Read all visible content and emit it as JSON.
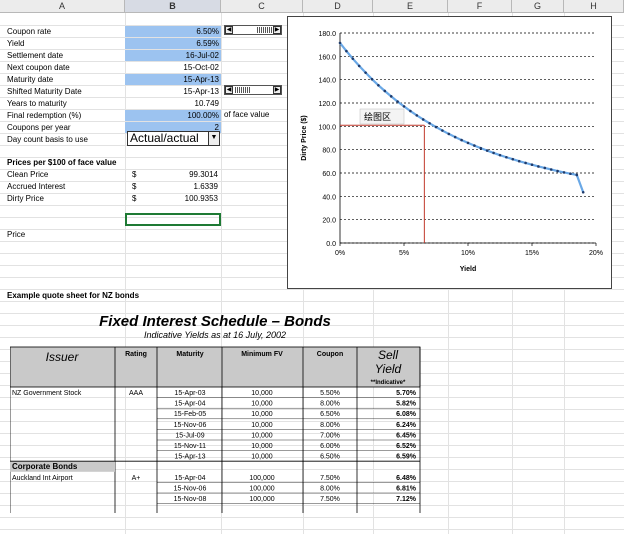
{
  "columns": [
    "A",
    "B",
    "C",
    "D",
    "E",
    "F",
    "G",
    "H"
  ],
  "inputs": {
    "rows": [
      {
        "label": "Coupon rate",
        "value": "6.50%",
        "highlight": true
      },
      {
        "label": "Yield",
        "value": "6.59%",
        "highlight": true
      },
      {
        "label": "Settlement date",
        "value": "16-Jul-02",
        "highlight": true
      },
      {
        "label": "Next coupon date",
        "value": "15-Oct-02",
        "highlight": false
      },
      {
        "label": "Maturity date",
        "value": "15-Apr-13",
        "highlight": true
      },
      {
        "label": "Shifted Maturity Date",
        "value": "15-Apr-13",
        "highlight": false
      },
      {
        "label": "Years to maturity",
        "value": "10.749",
        "highlight": false
      },
      {
        "label": "Final redemption (%)",
        "value": "100.00%",
        "highlight": true
      },
      {
        "label": "Coupons per year",
        "value": "2",
        "highlight": true
      },
      {
        "label": "Day count basis to use",
        "value": "",
        "highlight": false
      }
    ],
    "face_value_note": "of face value",
    "day_count_selected": "Actual/actual",
    "colors": {
      "highlight": "#9cc3f0"
    }
  },
  "prices": {
    "heading": "Prices per $100 of face value",
    "rows": [
      {
        "label": "Clean Price",
        "currency": "$",
        "value": "99.3014"
      },
      {
        "label": "Accrued Interest",
        "currency": "$",
        "value": "1.6339"
      },
      {
        "label": "Dirty Price",
        "currency": "$",
        "value": "100.9353"
      }
    ],
    "price_label": "Price"
  },
  "example_caption": "Example quote sheet for NZ bonds",
  "chart_data": {
    "type": "line",
    "title": "",
    "xlabel": "Yield",
    "ylabel": "Dirty Price ($)",
    "xlim": [
      0,
      20
    ],
    "ylim": [
      0,
      180
    ],
    "x_ticks": [
      "0%",
      "5%",
      "10%",
      "15%",
      "20%"
    ],
    "y_ticks": [
      "0.0",
      "20.0",
      "40.0",
      "60.0",
      "80.0",
      "100.0",
      "120.0",
      "140.0",
      "160.0",
      "180.0"
    ],
    "grid": true,
    "series": [
      {
        "x": [
          0,
          0.5,
          1,
          1.5,
          2,
          2.5,
          3,
          3.5,
          4,
          4.5,
          5,
          5.5,
          6,
          6.5,
          7,
          7.5,
          8,
          8.5,
          9,
          9.5,
          10,
          10.5,
          11,
          11.5,
          12,
          12.5,
          13,
          13.5,
          14,
          14.5,
          15,
          15.5,
          16,
          16.5,
          17,
          17.5,
          18,
          18.5,
          19
        ],
        "y": [
          171.5,
          164.5,
          158,
          151.8,
          146,
          140.4,
          135.2,
          130.3,
          125.7,
          121.2,
          117.1,
          113.1,
          109.4,
          105.9,
          102.6,
          99.4,
          96.4,
          93.5,
          90.8,
          88.2,
          85.8,
          83.5,
          81.3,
          79.2,
          77.2,
          75.3,
          73.5,
          71.8,
          70.1,
          68.6,
          67.1,
          65.6,
          64.3,
          63,
          61.7,
          60.5,
          59.4,
          58.3,
          43.5
        ]
      }
    ],
    "marker": {
      "x": 6.59,
      "y": 100.9353
    },
    "tooltip": "绘图区",
    "colors": {
      "line": "#6aa8e6",
      "marker_line": "#c0392b",
      "points": "#1f3b6b"
    }
  },
  "fis": {
    "title": "Fixed Interest Schedule – Bonds",
    "subtitle": "Indicative Yields as at 16 July, 2002",
    "headers": {
      "issuer": "Issuer",
      "rating": "Rating",
      "maturity": "Maturity",
      "minfv": "Minimum FV",
      "coupon": "Coupon",
      "sell": "Sell",
      "yield": "Yield",
      "indicative": "**Indicative*"
    },
    "groups": [
      {
        "name": "NZ Government Stock",
        "rating": "AAA",
        "rows": [
          {
            "maturity": "15-Apr-03",
            "minfv": "10,000",
            "coupon": "5.50%",
            "yield": "5.70%"
          },
          {
            "maturity": "15-Apr-04",
            "minfv": "10,000",
            "coupon": "8.00%",
            "yield": "5.82%"
          },
          {
            "maturity": "15-Feb-05",
            "minfv": "10,000",
            "coupon": "6.50%",
            "yield": "6.08%"
          },
          {
            "maturity": "15-Nov-06",
            "minfv": "10,000",
            "coupon": "8.00%",
            "yield": "6.24%"
          },
          {
            "maturity": "15-Jul-09",
            "minfv": "10,000",
            "coupon": "7.00%",
            "yield": "6.45%"
          },
          {
            "maturity": "15-Nov-11",
            "minfv": "10,000",
            "coupon": "6.00%",
            "yield": "6.52%"
          },
          {
            "maturity": "15-Apr-13",
            "minfv": "10,000",
            "coupon": "6.50%",
            "yield": "6.59%"
          }
        ]
      },
      {
        "section": "Corporate Bonds",
        "name": "Auckland Int Airport",
        "rating": "A+",
        "rows": [
          {
            "maturity": "15-Apr-04",
            "minfv": "100,000",
            "coupon": "7.50%",
            "yield": "6.48%"
          },
          {
            "maturity": "15-Nov-06",
            "minfv": "100,000",
            "coupon": "8.00%",
            "yield": "6.81%"
          },
          {
            "maturity": "15-Nov-08",
            "minfv": "100,000",
            "coupon": "7.50%",
            "yield": "7.12%"
          }
        ]
      }
    ]
  }
}
